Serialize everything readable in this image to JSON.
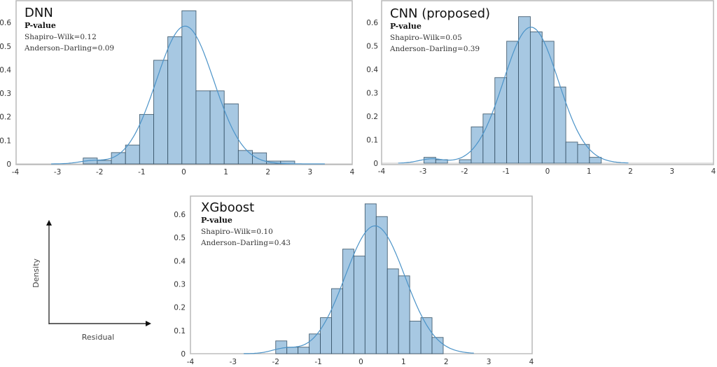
{
  "chart_data": [
    {
      "type": "bar",
      "subtype": "histogram-with-kde",
      "title": "DNN",
      "annotation": {
        "heading": "P-value",
        "lines": [
          "Shapiro–Wilk=0.12",
          "Anderson–Darling=0.09"
        ]
      },
      "xlabel": "Residual",
      "ylabel": "Density",
      "xlim": [
        -4,
        4
      ],
      "ylim": [
        0,
        0.66
      ],
      "xticks": [
        "-4",
        "-3",
        "-2",
        "-1",
        "0",
        "1",
        "2",
        "3",
        "4"
      ],
      "yticks": [
        "0",
        "0.1",
        "0.2",
        "0.3",
        "0.4",
        "0.5",
        "0.6"
      ],
      "bin_start": -2.39,
      "bin_width": 0.335,
      "values": [
        0.025,
        0.015,
        0.048,
        0.08,
        0.21,
        0.44,
        0.54,
        0.65,
        0.31,
        0.31,
        0.255,
        0.057,
        0.047,
        0.012,
        0.012
      ],
      "kde": {
        "mean": 0.03,
        "sd": 0.68,
        "peak": 0.585,
        "range": [
          -3.15,
          3.35
        ]
      }
    },
    {
      "type": "bar",
      "subtype": "histogram-with-kde",
      "title": "CNN (proposed)",
      "annotation": {
        "heading": "P-value",
        "lines": [
          "Shapiro–Wilk=0.05",
          "Anderson–Darling=0.39"
        ]
      },
      "xlabel": "Residual",
      "ylabel": "Density",
      "xlim": [
        -4,
        4
      ],
      "ylim": [
        0,
        0.66
      ],
      "xticks": [
        "-4",
        "-3",
        "-2",
        "-1",
        "0",
        "1",
        "2",
        "3",
        "4"
      ],
      "yticks": [
        "0",
        "0.1",
        "0.2",
        "0.3",
        "0.4",
        "0.5",
        "0.6"
      ],
      "bin_start": -2.98,
      "bin_width": 0.285,
      "values": [
        0.025,
        0.015,
        0.0,
        0.015,
        0.155,
        0.21,
        0.365,
        0.52,
        0.625,
        0.56,
        0.52,
        0.325,
        0.09,
        0.08,
        0.025
      ],
      "kde": {
        "mean": -0.4,
        "sd": 0.66,
        "peak": 0.58,
        "range": [
          -3.6,
          1.95
        ]
      }
    },
    {
      "type": "bar",
      "subtype": "histogram-with-kde",
      "title": "XGboost",
      "annotation": {
        "heading": "P-value",
        "lines": [
          "Shapiro–Wilk=0.10",
          "Anderson–Darling=0.43"
        ]
      },
      "xlabel": "Residual",
      "ylabel": "Density",
      "xlim": [
        -4,
        4
      ],
      "ylim": [
        0,
        0.66
      ],
      "xticks": [
        "-4",
        "-3",
        "-2",
        "-1",
        "0",
        "1",
        "2",
        "3",
        "4"
      ],
      "yticks": [
        "0",
        "0.1",
        "0.2",
        "0.3",
        "0.4",
        "0.5",
        "0.6"
      ],
      "bin_start": -2.0,
      "bin_width": 0.262,
      "values": [
        0.055,
        0.028,
        0.028,
        0.085,
        0.155,
        0.28,
        0.45,
        0.42,
        0.645,
        0.59,
        0.365,
        0.335,
        0.14,
        0.155,
        0.07
      ],
      "kde": {
        "mean": 0.33,
        "sd": 0.7,
        "peak": 0.55,
        "range": [
          -2.75,
          2.65
        ]
      }
    }
  ],
  "axis_legend": {
    "x_label": "Residual",
    "y_label": "Density"
  }
}
